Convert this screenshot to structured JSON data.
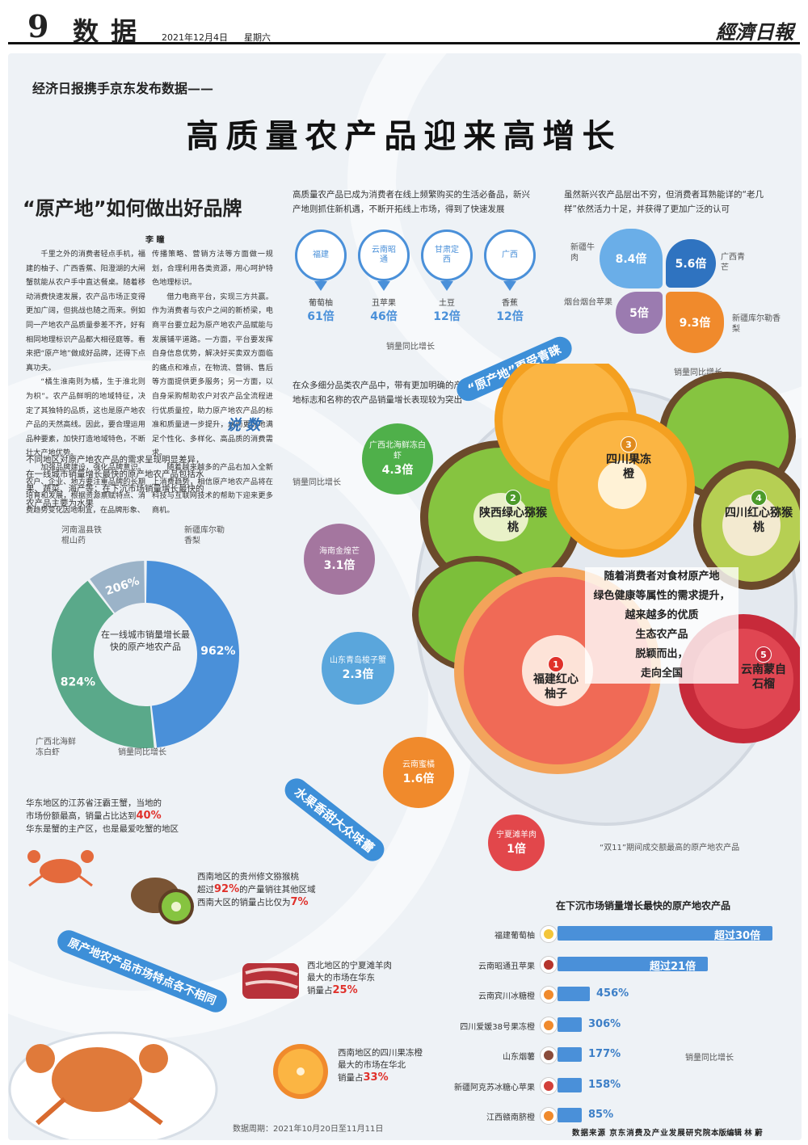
{
  "masthead": {
    "page_no": "9",
    "section": "数 据",
    "date": "2021年12月4日",
    "weekday": "星期六",
    "paper_logo": "經濟日報"
  },
  "headline": {
    "kicker": "经济日报携手京东发布数据——",
    "title": "高质量农产品迎来高增长"
  },
  "article": {
    "title": "“原产地”如何做出好品牌",
    "author": "李 瞳",
    "col1": [
      "千里之外的消费者轻点手机，福建的柚子、广西香蕉、阳澄湖的大闸蟹就能从农户手中直达餐桌。随着移动消费快速发展，农产品市场正变得更加广阔，但挑战也随之而来。例如同一产地农产品质量参差不齐，好有相同地理标识产品都大相径庭等。看来把“原产地”做成好品牌，还得下点真功夫。",
      "“橘生淮南则为橘，生于淮北则为枳”。农产品鲜明的地域特征，决定了其独特的品质，这也是原产地农产品的天然高线。因此，要合理运用品种要素，加快打造地域特色，不断壮大产地优势。",
      "加强品牌建设，强化品牌意识。农户、企业、地方要注重品牌的长期培育和发展，根据资源禀赋特点、消费趋势变化因地制宜，在品牌形象、"
    ],
    "col2": [
      "传播策略、营销方法等方面做一规划，合理利用各类资源，用心呵护特色地理标识。",
      "借力电商平台，实现三方共赢。作为消费者与农户之间的新桥梁，电商平台要立起为原产地农产品赋能与发展铺平道路。一方面，平台要发挥自身信息优势，解决好买卖双方面临的痛点和难点，在物流、营销、售后等方面提供更多服务；另一方面，以自身采购帮助农户对农产品全流程进行优质量控，助力原产地农产品的标准和质量进一步提升，从而更好地满足个性化、多样化、高品质的消费需求。",
      "随着越来越多的产品右加入全新上消费趋势，相信原产地农产品将在科技与互联网技术的帮助下迎来更多商机。"
    ],
    "shuoshu": "说 数"
  },
  "pins": {
    "intro": "高质量农产品已成为消费者在线上频繁购买的生活必备品，新兴产地则抓住新机遇，不断开拓线上市场，得到了快速发展",
    "items": [
      {
        "place": "福建",
        "name": "葡萄柚",
        "value": "61倍"
      },
      {
        "place": "云南昭通",
        "name": "丑苹果",
        "value": "46倍"
      },
      {
        "place": "甘肃定西",
        "name": "土豆",
        "value": "12倍"
      },
      {
        "place": "广西",
        "name": "香蕉",
        "value": "12倍"
      }
    ],
    "note": "销量同比增长"
  },
  "clover": {
    "intro": "虽然新兴农产品层出不穷，但消费者耳熟能详的“老几样”依然活力十足，并获得了更加广泛的认可",
    "items": [
      {
        "name": "新疆牛肉",
        "value": "8.4倍",
        "color": "#6aaee8"
      },
      {
        "name": "广西青芒",
        "value": "5.6倍",
        "color": "#2f73c0"
      },
      {
        "name": "烟台烟台苹果",
        "value": "5倍",
        "color": "#9b7bb0"
      },
      {
        "name": "新疆库尔勒香梨",
        "value": "9.3倍",
        "color": "#f08a2c"
      }
    ],
    "note": "销量同比增长"
  },
  "middle": {
    "intro": "在众多细分品类农产品中，带有更加明确的产地标志和名称的农产品销量增长表现较为突出",
    "note": "销量同比增长",
    "banner": "“原产地”更受青睐",
    "bubbles": [
      {
        "name": "广西北海鲜冻白虾",
        "value": "4.3倍",
        "color": "#4fb04a"
      },
      {
        "name": "海南金煌芒",
        "value": "3.1倍",
        "color": "#a4769f"
      },
      {
        "name": "山东青岛梭子蟹",
        "value": "2.3倍",
        "color": "#5aa6dc"
      },
      {
        "name": "云南蜜橘",
        "value": "1.6倍",
        "color": "#f08a2c"
      },
      {
        "name": "宁夏滩羊肉",
        "value": "1倍",
        "color": "#e2474b"
      }
    ]
  },
  "fruits": {
    "items": [
      {
        "no": "1",
        "name": "福建红心柚子"
      },
      {
        "no": "2",
        "name": "陕西绿心猕猴桃"
      },
      {
        "no": "3",
        "name": "四川果冻橙"
      },
      {
        "no": "4",
        "name": "四川红心猕猴桃"
      },
      {
        "no": "5",
        "name": "云南蒙自石榴"
      }
    ],
    "line1": "随着消费者对食材原产地",
    "line2": "绿色健康等属性的需求提升，",
    "line3": "越来越多的优质",
    "line4": "生态农产品",
    "line5": "脱颖而出，",
    "line6": "走向全国",
    "footnote": "“双11”期间成交额最高的原产地农产品"
  },
  "donut": {
    "intro": "不同地区对原产地农产品的需求呈现明显差异，在一线城市销量增长最快的原产地农产品包括水果、蔬菜、海产等；在下沉市场销量增长最快的农产品主要为水果",
    "center": "在一线城市销量增长最快的原产地农产品",
    "note": "销量同比增长",
    "label_top": "河南温县铁棍山药",
    "label_right": "新疆库尔勒香梨",
    "label_left": "广西北海鲜冻白虾"
  },
  "chart_data": {
    "type": "pie",
    "title": "在一线城市销量增长最快的原产地农产品",
    "categories": [
      "新疆库尔勒香梨",
      "广西北海鲜冻白虾",
      "河南温县铁棍山药"
    ],
    "values": [
      962,
      824,
      206
    ],
    "value_labels": [
      "962%",
      "824%",
      "206%"
    ],
    "colors": [
      "#4a90d9",
      "#5aa98a",
      "#9bb3c8"
    ]
  },
  "regional": {
    "banner1": "水果香甜大众味蕾",
    "banner2": "原产地农产品市场特点各不相同",
    "crab": {
      "t1": "华东地区的江苏省汪霸王蟹，当地的",
      "t2a": "市场份额最高，销量占比达到",
      "t2b": "40%",
      "t3": "华东是蟹的主产区，也是最爱吃蟹的地区"
    },
    "kiwi": {
      "t1": "西南地区的贵州修文猕猴桃",
      "t2a": "超过",
      "t2b": "92%",
      "t2c": "的产量销往其他区域",
      "t3a": "西南大区的销量占比仅为",
      "t3b": "7%"
    },
    "lamb": {
      "t1": "西北地区的宁夏滩羊肉",
      "t2": "最大的市场在华东",
      "t3a": "销量占",
      "t3b": "25%"
    },
    "orange": {
      "t1": "西南地区的四川果冻橙",
      "t2": "最大的市场在华北",
      "t3a": "销量占",
      "t3b": "33%"
    },
    "period": "数据周期：2021年10月20日至11月11日"
  },
  "bars": {
    "title": "在下沉市场销量增长最快的原产地农产品",
    "note": "销量同比增长",
    "items": [
      {
        "name": "福建葡萄柚",
        "label": "超过30倍",
        "frac": 1.0,
        "icon_color": "#f3c53a"
      },
      {
        "name": "云南昭通丑苹果",
        "label": "超过21倍",
        "frac": 0.7,
        "icon_color": "#b5342c"
      },
      {
        "name": "云南宾川冰糖橙",
        "label": "456%",
        "frac": 0.152,
        "icon_color": "#f08a2c"
      },
      {
        "name": "四川爱媛38号果冻橙",
        "label": "306%",
        "frac": 0.102,
        "icon_color": "#f08a2c"
      },
      {
        "name": "山东烟薯",
        "label": "177%",
        "frac": 0.059,
        "icon_color": "#8a4b3a"
      },
      {
        "name": "新疆阿克苏冰糖心苹果",
        "label": "158%",
        "frac": 0.053,
        "icon_color": "#d2403a"
      },
      {
        "name": "江西赣南脐橙",
        "label": "85%",
        "frac": 0.028,
        "icon_color": "#f08a2c"
      }
    ]
  },
  "footer": {
    "source": "数据来源 京东消费及产业发展研究院",
    "editor": "本版编辑 林 蔚"
  }
}
